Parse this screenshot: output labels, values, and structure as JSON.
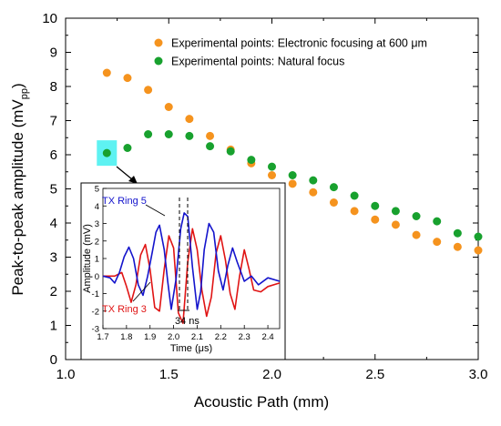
{
  "chart_data": [
    {
      "type": "scatter",
      "title": "",
      "xlabel": "Acoustic Path (mm)",
      "ylabel_main": "Peak-to-peak amplitude (mV",
      "ylabel_sub": "pp",
      "ylabel_close": ")",
      "xlim": [
        1.0,
        3.0
      ],
      "ylim": [
        0,
        10
      ],
      "x_ticks": [
        "1.0",
        "1.5",
        "2.0",
        "2.5",
        "3.0"
      ],
      "y_ticks": [
        "0",
        "1",
        "2",
        "3",
        "4",
        "5",
        "6",
        "7",
        "8",
        "9",
        "10"
      ],
      "legend_position": "top-right",
      "series": [
        {
          "name": "Experimental points: Electronic focusing at 600 μm",
          "color": "#f5931e",
          "x": [
            1.2,
            1.3,
            1.4,
            1.5,
            1.6,
            1.7,
            1.8,
            1.9,
            2.0,
            2.1,
            2.2,
            2.3,
            2.4,
            2.5,
            2.6,
            2.7,
            2.8,
            2.9,
            3.0
          ],
          "y": [
            8.4,
            8.25,
            7.9,
            7.4,
            7.05,
            6.55,
            6.15,
            5.75,
            5.4,
            5.15,
            4.9,
            4.6,
            4.35,
            4.1,
            3.95,
            3.65,
            3.45,
            3.3,
            3.2
          ]
        },
        {
          "name": "Experimental points: Natural focus",
          "color": "#18a12e",
          "x": [
            1.2,
            1.3,
            1.4,
            1.5,
            1.6,
            1.7,
            1.8,
            1.9,
            2.0,
            2.1,
            2.2,
            2.3,
            2.4,
            2.5,
            2.6,
            2.7,
            2.8,
            2.9,
            3.0
          ],
          "y": [
            6.05,
            6.2,
            6.6,
            6.6,
            6.55,
            6.25,
            6.1,
            5.85,
            5.65,
            5.4,
            5.25,
            5.05,
            4.8,
            4.5,
            4.35,
            4.2,
            4.05,
            3.7,
            3.6
          ]
        }
      ],
      "highlight": {
        "x": 1.2,
        "y": 6.05,
        "color": "#5ef2f2"
      }
    },
    {
      "type": "line",
      "title": "",
      "xlabel_main": "Time (",
      "xlabel_unit": "μs",
      "xlabel_close": ")",
      "ylabel": "Amplitude (mV)",
      "xlim": [
        1.7,
        2.45
      ],
      "ylim": [
        -3,
        5
      ],
      "x_ticks": [
        "1.7",
        "1.8",
        "1.9",
        "2.0",
        "2.1",
        "2.2",
        "2.3",
        "2.4"
      ],
      "y_ticks": [
        "-3",
        "-2",
        "-1",
        "0",
        "1",
        "2",
        "3",
        "4",
        "5"
      ],
      "series": [
        {
          "name": "TX Ring 5",
          "color": "#1414cc",
          "x": [
            1.7,
            1.73,
            1.75,
            1.77,
            1.79,
            1.81,
            1.83,
            1.85,
            1.87,
            1.89,
            1.91,
            1.925,
            1.94,
            1.96,
            1.975,
            1.99,
            2.01,
            2.03,
            2.045,
            2.06,
            2.08,
            2.1,
            2.115,
            2.13,
            2.15,
            2.17,
            2.19,
            2.21,
            2.23,
            2.25,
            2.27,
            2.3,
            2.33,
            2.36,
            2.4,
            2.45
          ],
          "y": [
            0.0,
            -0.1,
            -0.4,
            0.2,
            1.1,
            1.65,
            1.0,
            -0.5,
            -1.1,
            0.0,
            1.4,
            2.5,
            2.9,
            1.5,
            -0.3,
            -1.9,
            -0.2,
            2.7,
            3.6,
            3.4,
            0.5,
            -1.9,
            -0.9,
            1.5,
            3.0,
            2.5,
            0.3,
            -0.8,
            0.6,
            1.6,
            0.8,
            -0.3,
            0.0,
            -0.5,
            -0.1,
            -0.3
          ]
        },
        {
          "name": "TX Ring 3",
          "color": "#e01414",
          "x": [
            1.7,
            1.75,
            1.78,
            1.8,
            1.82,
            1.84,
            1.86,
            1.88,
            1.9,
            1.92,
            1.94,
            1.96,
            1.98,
            2.0,
            2.02,
            2.04,
            2.06,
            2.08,
            2.1,
            2.12,
            2.14,
            2.16,
            2.18,
            2.2,
            2.22,
            2.24,
            2.26,
            2.28,
            2.3,
            2.32,
            2.34,
            2.37,
            2.4,
            2.45
          ],
          "y": [
            0.0,
            0.0,
            0.2,
            -0.6,
            -1.5,
            -0.5,
            1.2,
            1.8,
            0.4,
            -1.8,
            -2.0,
            0.4,
            2.3,
            1.6,
            -2.1,
            -2.7,
            0.8,
            2.7,
            1.5,
            -0.8,
            -2.3,
            -1.2,
            1.3,
            2.3,
            0.9,
            -1.0,
            -1.9,
            0.0,
            1.5,
            0.4,
            -0.8,
            -0.9,
            -0.6,
            -0.4
          ]
        }
      ],
      "annotations": [
        {
          "text": "TX Ring 5",
          "color": "#1414cc"
        },
        {
          "text": "TX Ring 3",
          "color": "#e01414"
        },
        {
          "text": "34 ns",
          "color": "#000000"
        }
      ]
    }
  ]
}
